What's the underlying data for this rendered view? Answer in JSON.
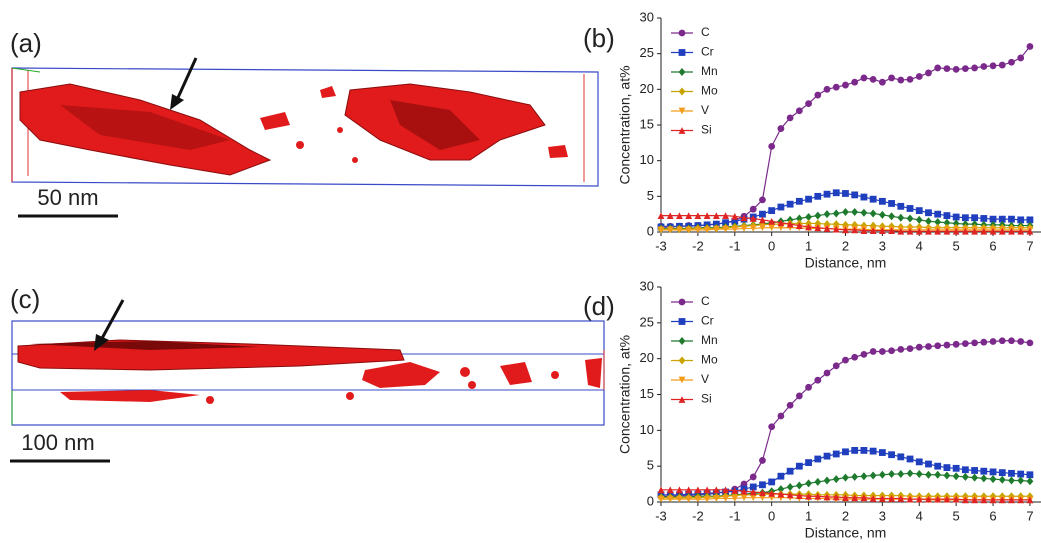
{
  "images": [
    {
      "label": "(a)",
      "scale_bar": "50 nm"
    },
    {
      "label": "(c)",
      "scale_bar": "100 nm"
    }
  ],
  "chart_data": [
    {
      "type": "line",
      "label": "(b)",
      "xlabel": "Distance, nm",
      "ylabel": "Concentration, at%",
      "xlim": [
        -3,
        7.3
      ],
      "ylim": [
        0,
        30
      ],
      "xticks": [
        -3,
        -2,
        -1,
        0,
        1,
        2,
        3,
        4,
        5,
        6,
        7
      ],
      "yticks": [
        0,
        5,
        10,
        15,
        20,
        25,
        30
      ],
      "legend": "upper left",
      "x": [
        -3,
        -2.75,
        -2.5,
        -2.25,
        -2,
        -1.75,
        -1.5,
        -1.25,
        -1,
        -0.75,
        -0.5,
        -0.25,
        0,
        0.25,
        0.5,
        0.75,
        1,
        1.25,
        1.5,
        1.75,
        2,
        2.25,
        2.5,
        2.75,
        3,
        3.25,
        3.5,
        3.75,
        4,
        4.25,
        4.5,
        4.75,
        5,
        5.25,
        5.5,
        5.75,
        6,
        6.25,
        6.5,
        6.75,
        7
      ],
      "series": [
        {
          "name": "C",
          "color": "#7b2a8c",
          "marker": "circle",
          "values": [
            0.8,
            0.8,
            0.8,
            0.9,
            0.9,
            1.0,
            1.1,
            1.3,
            1.6,
            2.2,
            3.2,
            4.5,
            12,
            14.5,
            16,
            17,
            18,
            19.2,
            20,
            20.3,
            20.6,
            21,
            21.6,
            21.4,
            21,
            21.6,
            21.3,
            21.4,
            21.8,
            22.3,
            23,
            22.9,
            22.8,
            22.9,
            23,
            23.2,
            23.3,
            23.4,
            23.8,
            24.4,
            26
          ]
        },
        {
          "name": "Cr",
          "color": "#1f3fbf",
          "marker": "square",
          "values": [
            0.7,
            0.7,
            0.8,
            0.8,
            0.9,
            1.0,
            1.1,
            1.3,
            1.5,
            1.8,
            2.1,
            2.5,
            3.0,
            3.5,
            3.9,
            4.3,
            4.6,
            5.0,
            5.3,
            5.5,
            5.4,
            5.2,
            4.9,
            4.6,
            4.3,
            4.0,
            3.6,
            3.3,
            3.0,
            2.7,
            2.5,
            2.3,
            2.1,
            2.0,
            2.0,
            1.9,
            1.8,
            1.8,
            1.8,
            1.7,
            1.7
          ]
        },
        {
          "name": "Mn",
          "color": "#1e7a2c",
          "marker": "diamond",
          "values": [
            0.5,
            0.5,
            0.5,
            0.5,
            0.6,
            0.6,
            0.6,
            0.7,
            0.8,
            0.9,
            1.0,
            1.1,
            1.3,
            1.5,
            1.7,
            1.9,
            2.1,
            2.3,
            2.5,
            2.6,
            2.8,
            2.8,
            2.7,
            2.6,
            2.4,
            2.2,
            2.0,
            1.9,
            1.7,
            1.5,
            1.4,
            1.3,
            1.2,
            1.1,
            1.1,
            1.0,
            1.0,
            1.0,
            0.9,
            0.9,
            0.9
          ]
        },
        {
          "name": "Mo",
          "color": "#c9a400",
          "marker": "diamond",
          "values": [
            0.4,
            0.4,
            0.4,
            0.4,
            0.5,
            0.5,
            0.5,
            0.6,
            0.7,
            0.8,
            0.9,
            1.0,
            1.1,
            1.1,
            1.2,
            1.2,
            1.2,
            1.2,
            1.1,
            1.1,
            1.0,
            1.0,
            0.9,
            0.9,
            0.8,
            0.8,
            0.7,
            0.7,
            0.7,
            0.6,
            0.6,
            0.6,
            0.6,
            0.6,
            0.6,
            0.6,
            0.6,
            0.6,
            0.6,
            0.6,
            0.6
          ]
        },
        {
          "name": "V",
          "color": "#f39c1a",
          "marker": "triangle-down",
          "values": [
            0.3,
            0.3,
            0.3,
            0.3,
            0.3,
            0.3,
            0.4,
            0.4,
            0.4,
            0.5,
            0.5,
            0.6,
            0.6,
            0.6,
            0.6,
            0.6,
            0.5,
            0.5,
            0.5,
            0.4,
            0.4,
            0.4,
            0.4,
            0.3,
            0.3,
            0.3,
            0.3,
            0.3,
            0.3,
            0.3,
            0.3,
            0.3,
            0.3,
            0.3,
            0.3,
            0.3,
            0.3,
            0.3,
            0.3,
            0.3,
            0.3
          ]
        },
        {
          "name": "Si",
          "color": "#e02424",
          "marker": "triangle-up",
          "values": [
            2.3,
            2.3,
            2.3,
            2.3,
            2.3,
            2.3,
            2.3,
            2.3,
            2.2,
            2.0,
            1.9,
            1.7,
            1.5,
            1.3,
            1.1,
            0.9,
            0.7,
            0.6,
            0.5,
            0.4,
            0.3,
            0.3,
            0.2,
            0.2,
            0.2,
            0.2,
            0.1,
            0.1,
            0.1,
            0.1,
            0.1,
            0.1,
            0.1,
            0.1,
            0.1,
            0.1,
            0.1,
            0.1,
            0.1,
            0.1,
            0.1
          ]
        }
      ]
    },
    {
      "type": "line",
      "label": "(d)",
      "xlabel": "Distance, nm",
      "ylabel": "Concentration, at%",
      "xlim": [
        -3,
        7.3
      ],
      "ylim": [
        0,
        30
      ],
      "xticks": [
        -3,
        -2,
        -1,
        0,
        1,
        2,
        3,
        4,
        5,
        6,
        7
      ],
      "yticks": [
        0,
        5,
        10,
        15,
        20,
        25,
        30
      ],
      "legend": "upper left",
      "x": [
        -3,
        -2.75,
        -2.5,
        -2.25,
        -2,
        -1.75,
        -1.5,
        -1.25,
        -1,
        -0.75,
        -0.5,
        -0.25,
        0,
        0.25,
        0.5,
        0.75,
        1,
        1.25,
        1.5,
        1.75,
        2,
        2.25,
        2.5,
        2.75,
        3,
        3.25,
        3.5,
        3.75,
        4,
        4.25,
        4.5,
        4.75,
        5,
        5.25,
        5.5,
        5.75,
        6,
        6.25,
        6.5,
        6.75,
        7
      ],
      "series": [
        {
          "name": "C",
          "color": "#7b2a8c",
          "marker": "circle",
          "values": [
            0.8,
            0.8,
            0.9,
            0.9,
            1.0,
            1.1,
            1.2,
            1.4,
            1.8,
            2.5,
            3.5,
            5.8,
            10.5,
            12,
            13.5,
            14.8,
            16,
            17,
            18,
            19,
            19.8,
            20.2,
            20.6,
            21,
            21,
            21.1,
            21.3,
            21.4,
            21.6,
            21.7,
            21.8,
            21.9,
            22,
            22.1,
            22.2,
            22.3,
            22.4,
            22.5,
            22.5,
            22.4,
            22.2
          ]
        },
        {
          "name": "Cr",
          "color": "#1f3fbf",
          "marker": "square",
          "values": [
            1.0,
            1.0,
            1.0,
            1.1,
            1.1,
            1.2,
            1.3,
            1.4,
            1.5,
            1.8,
            2.1,
            2.4,
            2.8,
            3.6,
            4.3,
            5.0,
            5.5,
            6.0,
            6.4,
            6.7,
            7.0,
            7.2,
            7.2,
            7.1,
            6.9,
            6.6,
            6.3,
            6.0,
            5.6,
            5.3,
            5.0,
            4.8,
            4.7,
            4.5,
            4.4,
            4.3,
            4.2,
            4.1,
            4.0,
            3.9,
            3.8
          ]
        },
        {
          "name": "Mn",
          "color": "#1e7a2c",
          "marker": "diamond",
          "values": [
            0.7,
            0.7,
            0.7,
            0.7,
            0.8,
            0.8,
            0.8,
            0.9,
            1.0,
            1.1,
            1.2,
            1.3,
            1.5,
            1.8,
            2.1,
            2.3,
            2.6,
            2.8,
            3.0,
            3.2,
            3.4,
            3.5,
            3.6,
            3.7,
            3.8,
            3.9,
            3.9,
            4.0,
            3.9,
            3.8,
            3.8,
            3.7,
            3.6,
            3.5,
            3.4,
            3.3,
            3.2,
            3.1,
            3.0,
            3.0,
            2.9
          ]
        },
        {
          "name": "Mo",
          "color": "#c9a400",
          "marker": "diamond",
          "values": [
            0.6,
            0.6,
            0.6,
            0.6,
            0.6,
            0.7,
            0.7,
            0.8,
            0.9,
            1.0,
            1.0,
            1.1,
            1.1,
            1.1,
            1.1,
            1.1,
            1.1,
            1.0,
            1.0,
            1.0,
            1.0,
            0.9,
            0.9,
            0.9,
            0.9,
            0.9,
            0.9,
            0.8,
            0.8,
            0.8,
            0.8,
            0.8,
            0.8,
            0.8,
            0.8,
            0.8,
            0.8,
            0.8,
            0.8,
            0.8,
            0.8
          ]
        },
        {
          "name": "V",
          "color": "#f39c1a",
          "marker": "triangle-down",
          "values": [
            0.4,
            0.4,
            0.4,
            0.4,
            0.4,
            0.4,
            0.5,
            0.5,
            0.5,
            0.6,
            0.6,
            0.6,
            0.6,
            0.6,
            0.6,
            0.5,
            0.5,
            0.5,
            0.5,
            0.4,
            0.4,
            0.4,
            0.4,
            0.4,
            0.4,
            0.4,
            0.4,
            0.4,
            0.4,
            0.3,
            0.3,
            0.3,
            0.3,
            0.3,
            0.3,
            0.3,
            0.3,
            0.3,
            0.3,
            0.3,
            0.3
          ]
        },
        {
          "name": "Si",
          "color": "#e02424",
          "marker": "triangle-up",
          "values": [
            1.7,
            1.7,
            1.7,
            1.7,
            1.7,
            1.7,
            1.7,
            1.7,
            1.6,
            1.5,
            1.4,
            1.3,
            1.2,
            1.1,
            1.0,
            0.9,
            0.8,
            0.8,
            0.7,
            0.7,
            0.6,
            0.6,
            0.6,
            0.5,
            0.5,
            0.5,
            0.5,
            0.4,
            0.4,
            0.4,
            0.4,
            0.4,
            0.4,
            0.3,
            0.3,
            0.3,
            0.3,
            0.3,
            0.3,
            0.3,
            0.3
          ]
        }
      ]
    }
  ]
}
